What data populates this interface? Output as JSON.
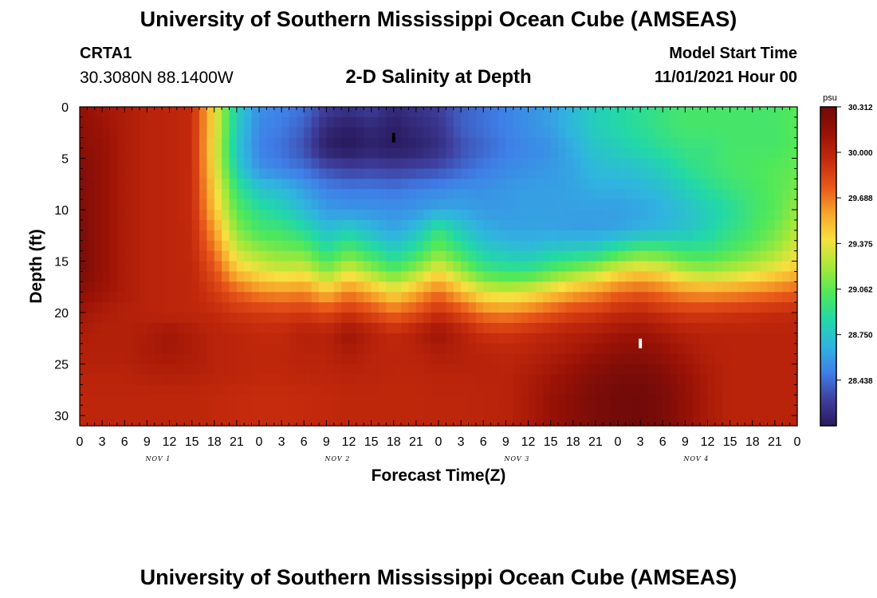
{
  "header": {
    "title": "University of Southern Mississippi Ocean Cube (AMSEAS)",
    "station_id": "CRTA1",
    "coords": "30.3080N  88.1400W",
    "subtitle": "2-D Salinity at Depth",
    "start_label": "Model Start Time",
    "start_value": "11/01/2021 Hour 00"
  },
  "footer": {
    "title": "University of Southern Mississippi Ocean Cube (AMSEAS)"
  },
  "chart_data": {
    "type": "heatmap",
    "title": "2-D Salinity at Depth",
    "xlabel": "Forecast Time(Z)",
    "ylabel": "Depth (ft)",
    "x_ticks": [
      "0",
      "3",
      "6",
      "9",
      "12",
      "15",
      "18",
      "21",
      "0",
      "3",
      "6",
      "9",
      "12",
      "15",
      "18",
      "21",
      "0",
      "3",
      "6",
      "9",
      "12",
      "15",
      "18",
      "21",
      "0",
      "3",
      "6",
      "9",
      "12",
      "15",
      "18",
      "21",
      "0"
    ],
    "x_range_hours": [
      0,
      96
    ],
    "day_labels": [
      "NOV 1",
      "NOV 2",
      "NOV 3",
      "NOV 4"
    ],
    "y_ticks": [
      0,
      5,
      10,
      15,
      20,
      25,
      30
    ],
    "y_range_ft": [
      0,
      31
    ],
    "y_inverted": true,
    "colorbar": {
      "unit": "psu",
      "ticks": [
        "30.312",
        "30.000",
        "29.688",
        "29.375",
        "29.062",
        "28.750",
        "28.438"
      ],
      "min": 28.125,
      "max": 30.312,
      "colors": [
        "#2a1a5e",
        "#3f3f9e",
        "#3f7fe8",
        "#30b4e0",
        "#22d8a8",
        "#4fe85a",
        "#a8e838",
        "#f7e040",
        "#f7a52a",
        "#e8561a",
        "#c42a0c",
        "#9a1206",
        "#6e0a0a"
      ]
    },
    "markers": [
      {
        "name": "low-salinity-marker",
        "hour": 42,
        "depth": 3,
        "color": "#000000"
      },
      {
        "name": "high-salinity-marker",
        "hour": 75,
        "depth": 23,
        "color": "#ffffff"
      }
    ],
    "field": {
      "description_free": true,
      "hours": [
        0,
        3,
        6,
        9,
        12,
        15,
        18,
        21,
        24,
        27,
        30,
        33,
        36,
        39,
        42,
        45,
        48,
        51,
        54,
        57,
        60,
        63,
        66,
        69,
        72,
        75,
        78,
        81,
        84,
        87,
        90,
        93,
        96
      ],
      "depths": [
        0,
        2,
        4,
        6,
        8,
        10,
        12,
        14,
        16,
        18,
        20,
        22,
        24,
        26,
        28,
        30
      ],
      "values": [
        [
          30.15,
          30.1,
          30.05,
          30.0,
          29.98,
          29.95,
          29.4,
          28.8,
          28.55,
          28.5,
          28.45,
          28.3,
          28.25,
          28.3,
          28.2,
          28.25,
          28.3,
          28.4,
          28.45,
          28.5,
          28.55,
          28.6,
          28.7,
          28.8,
          28.85,
          28.9,
          28.95,
          29.0,
          29.0,
          29.0,
          29.0,
          29.0,
          29.05
        ],
        [
          30.18,
          30.12,
          30.05,
          30.0,
          29.98,
          29.95,
          29.4,
          28.78,
          28.52,
          28.48,
          28.4,
          28.2,
          28.15,
          28.2,
          28.15,
          28.2,
          28.25,
          28.4,
          28.45,
          28.5,
          28.55,
          28.6,
          28.7,
          28.8,
          28.85,
          28.9,
          28.95,
          29.0,
          29.0,
          29.0,
          29.0,
          29.0,
          29.05
        ],
        [
          30.2,
          30.15,
          30.05,
          30.0,
          29.98,
          29.95,
          29.38,
          28.75,
          28.5,
          28.45,
          28.35,
          28.15,
          28.12,
          28.16,
          28.13,
          28.16,
          28.22,
          28.35,
          28.42,
          28.48,
          28.52,
          28.55,
          28.65,
          28.75,
          28.8,
          28.85,
          28.9,
          28.95,
          28.95,
          29.0,
          29.0,
          29.0,
          29.05
        ],
        [
          30.22,
          30.15,
          30.05,
          30.0,
          29.98,
          29.95,
          29.4,
          28.8,
          28.55,
          28.5,
          28.45,
          28.35,
          28.3,
          28.32,
          28.3,
          28.32,
          28.35,
          28.42,
          28.48,
          28.52,
          28.55,
          28.58,
          28.62,
          28.7,
          28.72,
          28.75,
          28.8,
          28.9,
          28.95,
          29.0,
          29.02,
          29.05,
          29.08
        ],
        [
          30.23,
          30.15,
          30.05,
          30.0,
          29.98,
          29.95,
          29.45,
          28.95,
          28.75,
          28.7,
          28.6,
          28.5,
          28.48,
          28.48,
          28.46,
          28.5,
          28.52,
          28.55,
          28.55,
          28.58,
          28.6,
          28.6,
          28.62,
          28.65,
          28.65,
          28.68,
          28.72,
          28.8,
          28.88,
          28.95,
          29.0,
          29.05,
          29.12
        ],
        [
          30.24,
          30.15,
          30.05,
          30.0,
          29.98,
          29.95,
          29.5,
          29.05,
          28.9,
          28.82,
          28.7,
          28.58,
          28.56,
          28.56,
          28.55,
          28.56,
          28.62,
          28.62,
          28.58,
          28.58,
          28.6,
          28.6,
          28.6,
          28.6,
          28.6,
          28.62,
          28.66,
          28.72,
          28.8,
          28.88,
          28.98,
          29.05,
          29.18
        ],
        [
          30.25,
          30.15,
          30.05,
          30.0,
          29.98,
          29.96,
          29.6,
          29.15,
          29.0,
          28.98,
          28.88,
          28.72,
          28.8,
          28.7,
          28.62,
          28.72,
          28.95,
          28.78,
          28.66,
          28.62,
          28.62,
          28.62,
          28.6,
          28.6,
          28.62,
          28.66,
          28.7,
          28.75,
          28.82,
          28.92,
          29.0,
          29.1,
          29.25
        ],
        [
          30.26,
          30.15,
          30.05,
          30.0,
          29.98,
          29.96,
          29.7,
          29.3,
          29.18,
          29.12,
          29.1,
          28.9,
          29.05,
          28.92,
          28.8,
          28.92,
          29.12,
          28.95,
          28.8,
          28.75,
          28.72,
          28.78,
          28.8,
          28.82,
          28.95,
          29.05,
          29.02,
          28.95,
          28.95,
          29.02,
          29.1,
          29.2,
          29.35
        ],
        [
          30.26,
          30.15,
          30.05,
          30.0,
          29.98,
          29.97,
          29.8,
          29.5,
          29.38,
          29.32,
          29.35,
          29.15,
          29.35,
          29.2,
          29.05,
          29.2,
          29.4,
          29.2,
          29.0,
          28.95,
          28.95,
          29.05,
          29.15,
          29.25,
          29.38,
          29.45,
          29.4,
          29.25,
          29.2,
          29.25,
          29.32,
          29.4,
          29.5
        ],
        [
          30.18,
          30.12,
          30.05,
          30.0,
          29.98,
          29.97,
          29.88,
          29.75,
          29.65,
          29.62,
          29.65,
          29.5,
          29.66,
          29.55,
          29.4,
          29.55,
          29.7,
          29.52,
          29.35,
          29.3,
          29.35,
          29.45,
          29.55,
          29.62,
          29.72,
          29.76,
          29.7,
          29.62,
          29.6,
          29.62,
          29.66,
          29.7,
          29.75
        ],
        [
          30.1,
          30.05,
          30.02,
          30.0,
          29.98,
          29.97,
          29.95,
          29.9,
          29.88,
          29.86,
          29.88,
          29.82,
          29.9,
          29.82,
          29.72,
          29.8,
          29.92,
          29.82,
          29.68,
          29.65,
          29.7,
          29.78,
          29.85,
          29.88,
          29.95,
          29.98,
          29.92,
          29.88,
          29.88,
          29.9,
          29.92,
          29.94,
          29.96
        ],
        [
          30.05,
          30.02,
          30.02,
          30.05,
          30.1,
          30.05,
          30.0,
          29.98,
          29.96,
          29.96,
          30.02,
          30.0,
          30.12,
          30.02,
          29.95,
          30.02,
          30.12,
          30.02,
          29.92,
          29.9,
          29.94,
          29.98,
          30.02,
          30.05,
          30.1,
          30.12,
          30.08,
          30.02,
          30.0,
          30.0,
          30.0,
          30.0,
          30.0
        ],
        [
          30.02,
          30.02,
          30.02,
          30.06,
          30.08,
          30.05,
          30.0,
          29.98,
          29.97,
          29.97,
          30.0,
          30.0,
          30.05,
          30.0,
          29.98,
          30.0,
          30.04,
          30.02,
          30.0,
          29.98,
          30.0,
          30.04,
          30.08,
          30.14,
          30.18,
          30.2,
          30.15,
          30.08,
          30.02,
          30.0,
          30.0,
          30.0,
          30.0
        ],
        [
          30.0,
          30.0,
          30.0,
          30.02,
          30.03,
          30.02,
          30.0,
          29.98,
          29.97,
          29.97,
          29.98,
          29.98,
          30.0,
          29.99,
          29.98,
          29.98,
          30.0,
          30.0,
          30.0,
          30.0,
          30.04,
          30.1,
          30.16,
          30.22,
          30.26,
          30.27,
          30.22,
          30.14,
          30.05,
          30.0,
          30.0,
          30.0,
          30.0
        ],
        [
          29.98,
          29.98,
          29.98,
          29.98,
          29.98,
          29.98,
          29.96,
          29.95,
          29.94,
          29.94,
          29.95,
          29.96,
          29.97,
          29.97,
          29.97,
          29.97,
          29.98,
          29.98,
          29.99,
          30.0,
          30.06,
          30.14,
          30.2,
          30.26,
          30.29,
          30.3,
          30.26,
          30.16,
          30.06,
          30.0,
          30.0,
          30.0,
          30.0
        ],
        [
          29.98,
          29.98,
          29.98,
          29.98,
          29.98,
          29.98,
          29.96,
          29.95,
          29.94,
          29.94,
          29.95,
          29.96,
          29.97,
          29.97,
          29.97,
          29.97,
          29.98,
          29.98,
          29.99,
          30.0,
          30.06,
          30.14,
          30.2,
          30.26,
          30.29,
          30.3,
          30.26,
          30.16,
          30.06,
          30.0,
          30.0,
          30.0,
          30.0
        ]
      ]
    }
  }
}
